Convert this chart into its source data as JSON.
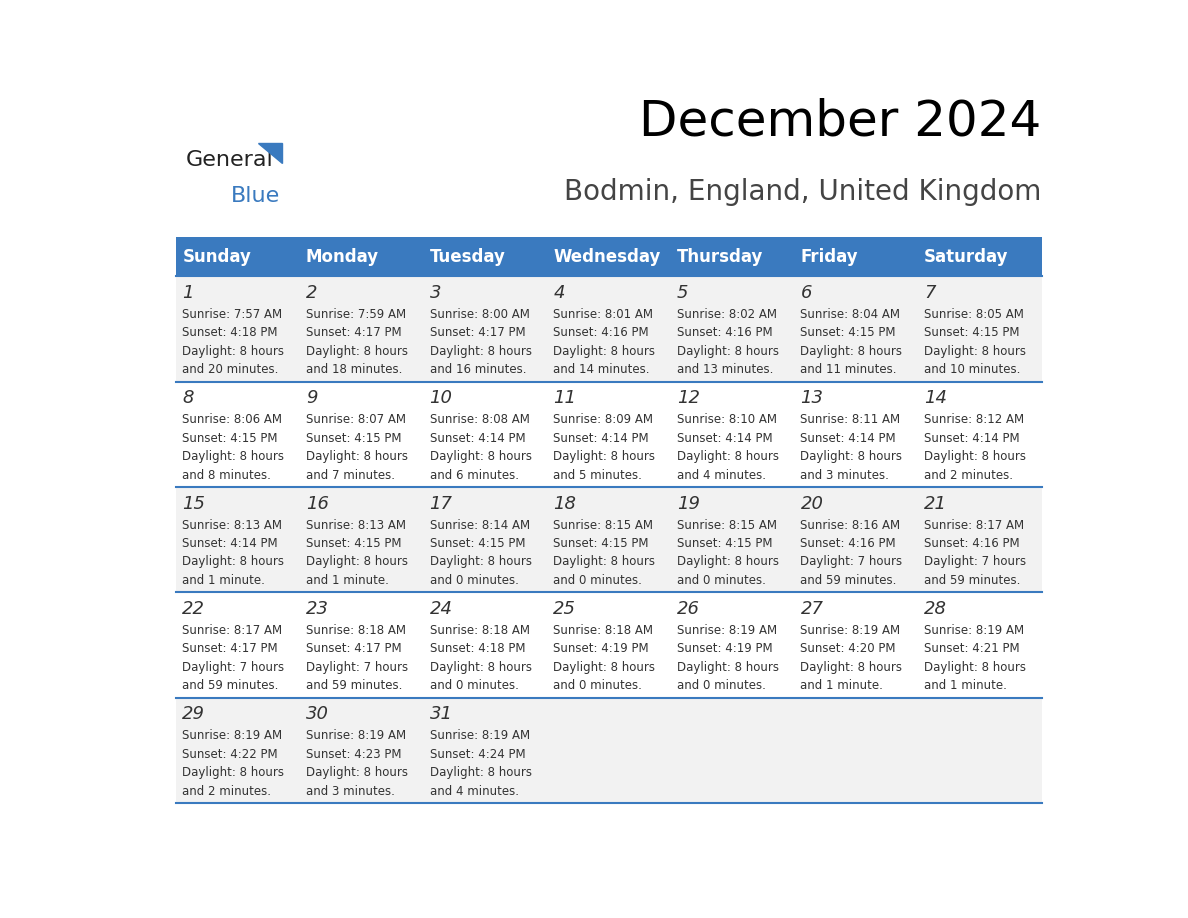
{
  "title": "December 2024",
  "subtitle": "Bodmin, England, United Kingdom",
  "days_of_week": [
    "Sunday",
    "Monday",
    "Tuesday",
    "Wednesday",
    "Thursday",
    "Friday",
    "Saturday"
  ],
  "header_bg": "#3a7abf",
  "header_text_color": "#ffffff",
  "row_bg_odd": "#f2f2f2",
  "row_bg_even": "#ffffff",
  "row_separator_color": "#3a7abf",
  "cell_text_color": "#333333",
  "day_number_color": "#333333",
  "cal_data": [
    [
      {
        "day": 1,
        "sunrise": "7:57 AM",
        "sunset": "4:18 PM",
        "daylight": "8 hours and 20 minutes."
      },
      {
        "day": 2,
        "sunrise": "7:59 AM",
        "sunset": "4:17 PM",
        "daylight": "8 hours and 18 minutes."
      },
      {
        "day": 3,
        "sunrise": "8:00 AM",
        "sunset": "4:17 PM",
        "daylight": "8 hours and 16 minutes."
      },
      {
        "day": 4,
        "sunrise": "8:01 AM",
        "sunset": "4:16 PM",
        "daylight": "8 hours and 14 minutes."
      },
      {
        "day": 5,
        "sunrise": "8:02 AM",
        "sunset": "4:16 PM",
        "daylight": "8 hours and 13 minutes."
      },
      {
        "day": 6,
        "sunrise": "8:04 AM",
        "sunset": "4:15 PM",
        "daylight": "8 hours and 11 minutes."
      },
      {
        "day": 7,
        "sunrise": "8:05 AM",
        "sunset": "4:15 PM",
        "daylight": "8 hours and 10 minutes."
      }
    ],
    [
      {
        "day": 8,
        "sunrise": "8:06 AM",
        "sunset": "4:15 PM",
        "daylight": "8 hours and 8 minutes."
      },
      {
        "day": 9,
        "sunrise": "8:07 AM",
        "sunset": "4:15 PM",
        "daylight": "8 hours and 7 minutes."
      },
      {
        "day": 10,
        "sunrise": "8:08 AM",
        "sunset": "4:14 PM",
        "daylight": "8 hours and 6 minutes."
      },
      {
        "day": 11,
        "sunrise": "8:09 AM",
        "sunset": "4:14 PM",
        "daylight": "8 hours and 5 minutes."
      },
      {
        "day": 12,
        "sunrise": "8:10 AM",
        "sunset": "4:14 PM",
        "daylight": "8 hours and 4 minutes."
      },
      {
        "day": 13,
        "sunrise": "8:11 AM",
        "sunset": "4:14 PM",
        "daylight": "8 hours and 3 minutes."
      },
      {
        "day": 14,
        "sunrise": "8:12 AM",
        "sunset": "4:14 PM",
        "daylight": "8 hours and 2 minutes."
      }
    ],
    [
      {
        "day": 15,
        "sunrise": "8:13 AM",
        "sunset": "4:14 PM",
        "daylight": "8 hours and 1 minute."
      },
      {
        "day": 16,
        "sunrise": "8:13 AM",
        "sunset": "4:15 PM",
        "daylight": "8 hours and 1 minute."
      },
      {
        "day": 17,
        "sunrise": "8:14 AM",
        "sunset": "4:15 PM",
        "daylight": "8 hours and 0 minutes."
      },
      {
        "day": 18,
        "sunrise": "8:15 AM",
        "sunset": "4:15 PM",
        "daylight": "8 hours and 0 minutes."
      },
      {
        "day": 19,
        "sunrise": "8:15 AM",
        "sunset": "4:15 PM",
        "daylight": "8 hours and 0 minutes."
      },
      {
        "day": 20,
        "sunrise": "8:16 AM",
        "sunset": "4:16 PM",
        "daylight": "7 hours and 59 minutes."
      },
      {
        "day": 21,
        "sunrise": "8:17 AM",
        "sunset": "4:16 PM",
        "daylight": "7 hours and 59 minutes."
      }
    ],
    [
      {
        "day": 22,
        "sunrise": "8:17 AM",
        "sunset": "4:17 PM",
        "daylight": "7 hours and 59 minutes."
      },
      {
        "day": 23,
        "sunrise": "8:18 AM",
        "sunset": "4:17 PM",
        "daylight": "7 hours and 59 minutes."
      },
      {
        "day": 24,
        "sunrise": "8:18 AM",
        "sunset": "4:18 PM",
        "daylight": "8 hours and 0 minutes."
      },
      {
        "day": 25,
        "sunrise": "8:18 AM",
        "sunset": "4:19 PM",
        "daylight": "8 hours and 0 minutes."
      },
      {
        "day": 26,
        "sunrise": "8:19 AM",
        "sunset": "4:19 PM",
        "daylight": "8 hours and 0 minutes."
      },
      {
        "day": 27,
        "sunrise": "8:19 AM",
        "sunset": "4:20 PM",
        "daylight": "8 hours and 1 minute."
      },
      {
        "day": 28,
        "sunrise": "8:19 AM",
        "sunset": "4:21 PM",
        "daylight": "8 hours and 1 minute."
      }
    ],
    [
      {
        "day": 29,
        "sunrise": "8:19 AM",
        "sunset": "4:22 PM",
        "daylight": "8 hours and 2 minutes."
      },
      {
        "day": 30,
        "sunrise": "8:19 AM",
        "sunset": "4:23 PM",
        "daylight": "8 hours and 3 minutes."
      },
      {
        "day": 31,
        "sunrise": "8:19 AM",
        "sunset": "4:24 PM",
        "daylight": "8 hours and 4 minutes."
      },
      null,
      null,
      null,
      null
    ]
  ],
  "logo_general_color": "#222222",
  "logo_blue_color": "#3a7abf",
  "logo_triangle_color": "#3a7abf"
}
